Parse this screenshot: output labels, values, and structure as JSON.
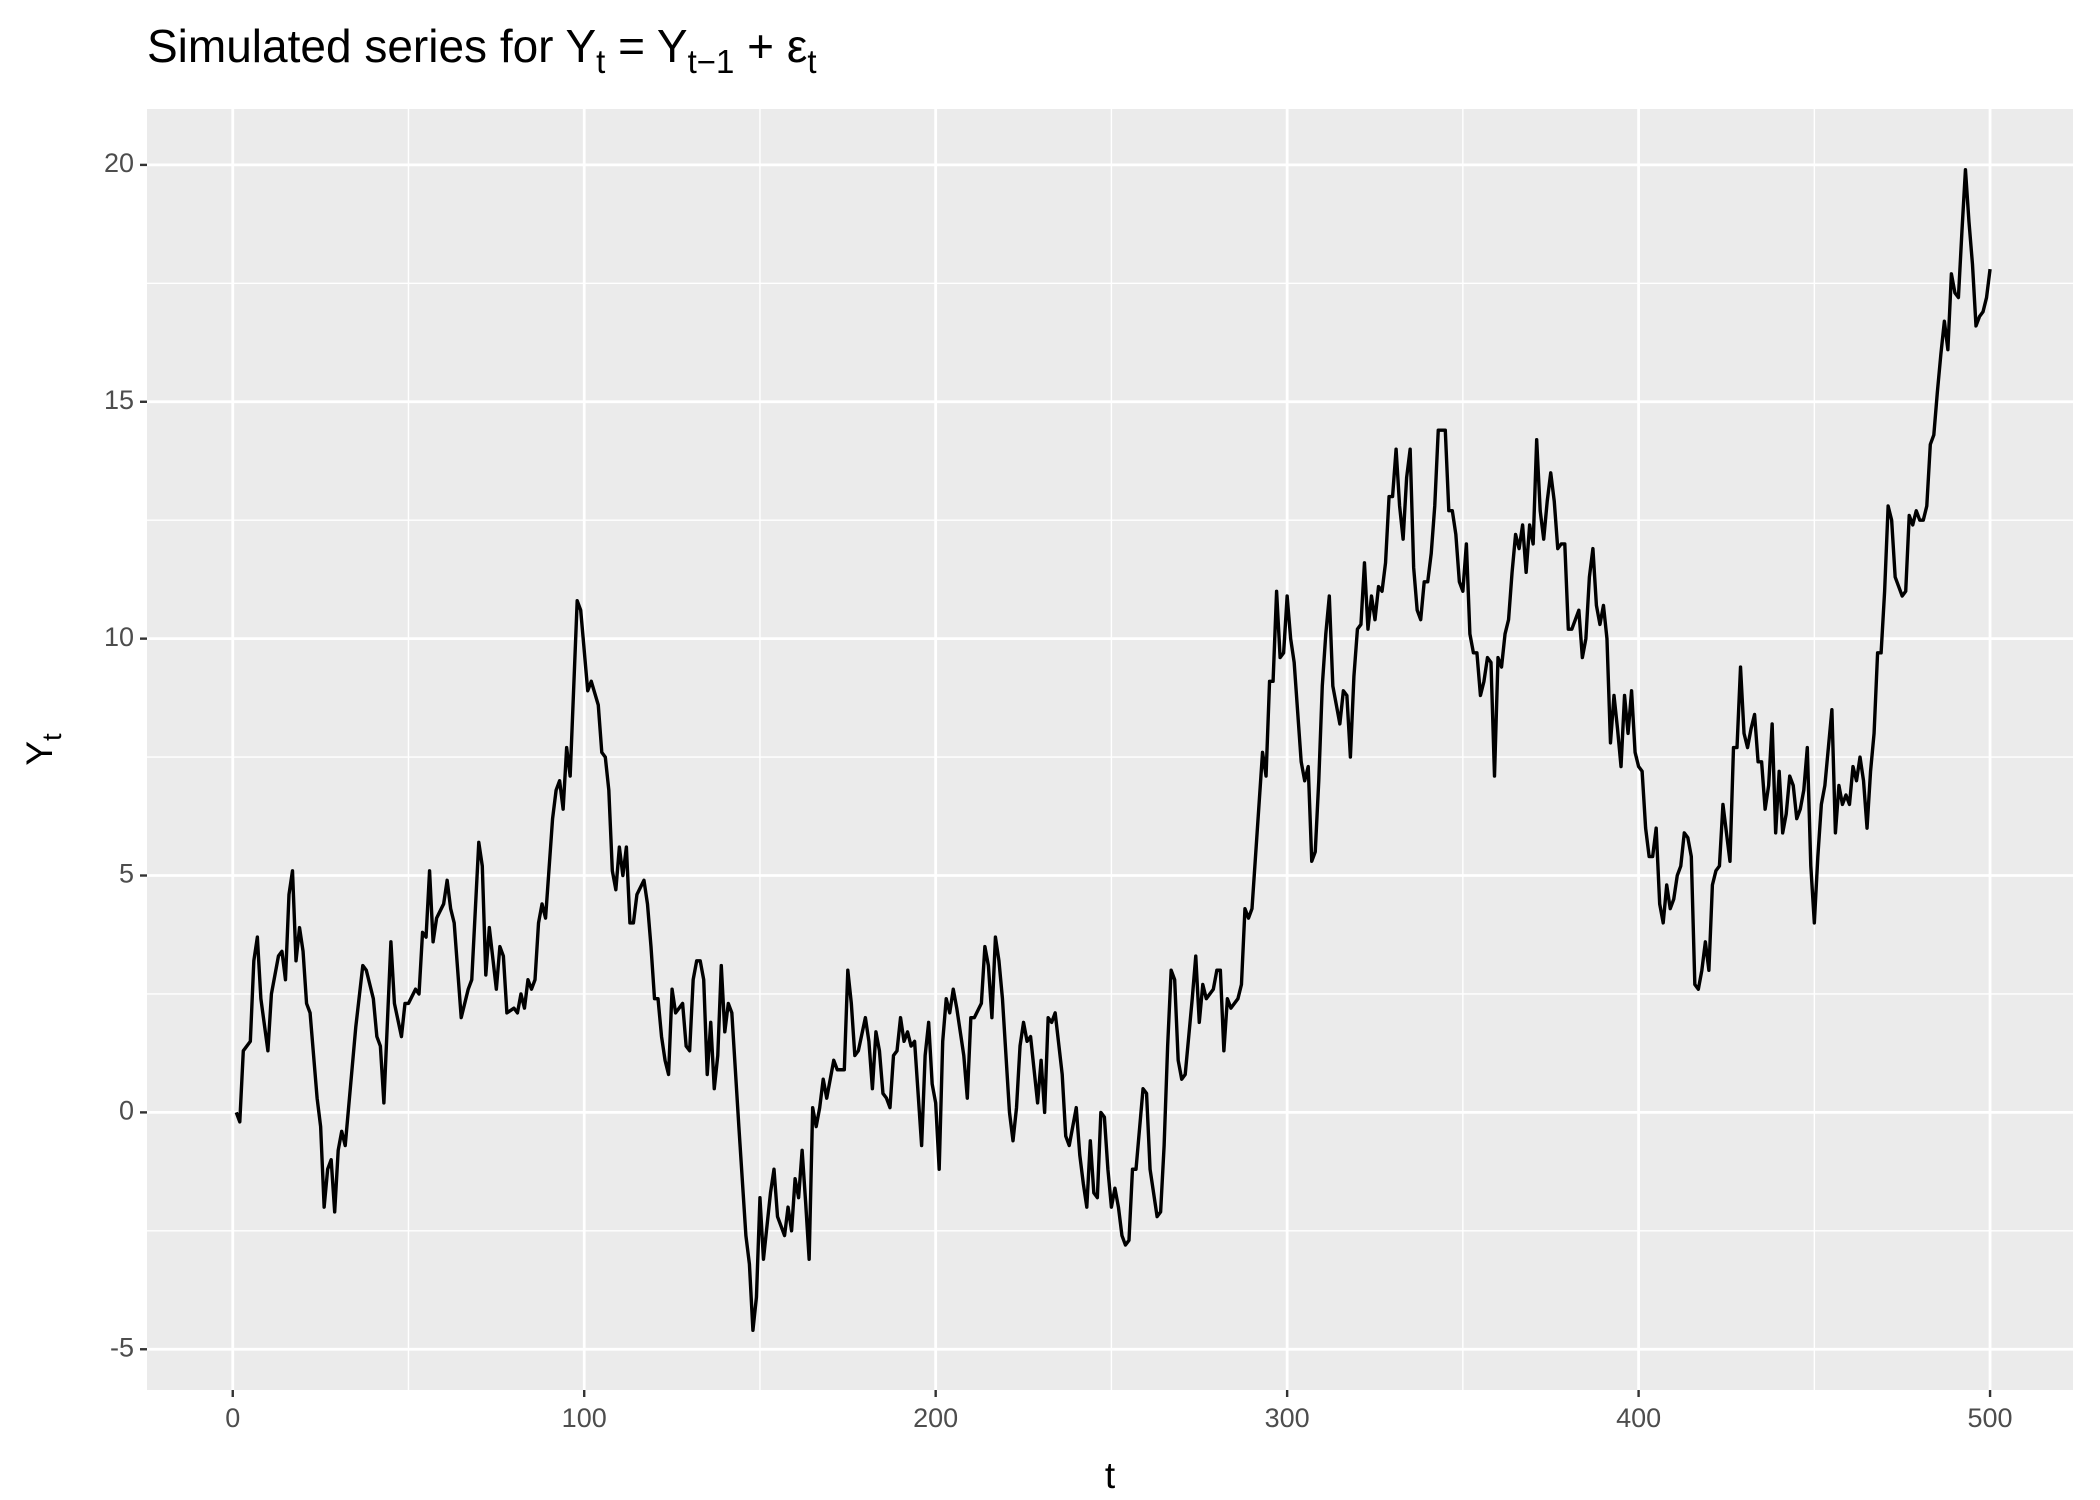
{
  "chart_data": {
    "type": "line",
    "title": [
      "Simulated series for  Y",
      "t",
      " = Y",
      "t−1",
      " + ε",
      "t"
    ],
    "x_label": "t",
    "y_label": [
      "Y",
      "t"
    ],
    "color": "#000000",
    "grid": true,
    "xlim": [
      -24.4,
      523.6
    ],
    "ylim": [
      -5.86,
      21.18
    ],
    "xticks": [
      0,
      100,
      200,
      300,
      400,
      500
    ],
    "yticks": [
      -5,
      0,
      5,
      10,
      15,
      20
    ],
    "x": [
      1,
      2,
      3,
      5,
      6,
      7,
      8,
      10,
      11,
      13,
      14,
      15,
      16,
      17,
      18,
      19,
      20,
      21,
      22,
      24,
      25,
      26,
      27,
      28,
      29,
      30,
      31,
      32,
      35,
      37,
      38,
      40,
      41,
      42,
      43,
      45,
      46,
      48,
      49,
      50,
      52,
      53,
      54,
      55,
      56,
      57,
      58,
      60,
      61,
      62,
      63,
      65,
      67,
      68,
      70,
      71,
      72,
      73,
      75,
      76,
      77,
      78,
      80,
      81,
      82,
      83,
      84,
      85,
      86,
      87,
      88,
      89,
      91,
      92,
      93,
      94,
      95,
      96,
      98,
      99,
      101,
      102,
      104,
      105,
      106,
      107,
      108,
      109,
      110,
      111,
      112,
      113,
      114,
      115,
      117,
      118,
      119,
      120,
      121,
      122,
      123,
      124,
      125,
      126,
      128,
      129,
      130,
      131,
      132,
      133,
      134,
      135,
      136,
      137,
      138,
      139,
      140,
      141,
      142,
      144,
      146,
      147,
      148,
      149,
      150,
      151,
      153,
      154,
      155,
      157,
      158,
      159,
      160,
      161,
      162,
      163,
      164,
      165,
      166,
      167,
      168,
      169,
      171,
      172,
      174,
      175,
      176,
      177,
      178,
      180,
      181,
      182,
      183,
      184,
      185,
      186,
      187,
      188,
      189,
      190,
      191,
      192,
      193,
      194,
      196,
      197,
      198,
      199,
      200,
      201,
      202,
      203,
      204,
      205,
      206,
      208,
      209,
      210,
      211,
      213,
      214,
      215,
      216,
      217,
      218,
      219,
      221,
      222,
      223,
      224,
      225,
      226,
      227,
      228,
      229,
      230,
      231,
      232,
      233,
      234,
      236,
      237,
      238,
      240,
      241,
      242,
      243,
      244,
      245,
      246,
      247,
      248,
      249,
      250,
      251,
      252,
      253,
      254,
      255,
      256,
      257,
      259,
      260,
      261,
      263,
      264,
      265,
      266,
      267,
      268,
      269,
      270,
      271,
      273,
      274,
      275,
      276,
      277,
      279,
      280,
      281,
      282,
      283,
      284,
      286,
      287,
      288,
      289,
      290,
      292,
      293,
      294,
      295,
      296,
      297,
      298,
      299,
      300,
      301,
      302,
      304,
      305,
      306,
      307,
      308,
      309,
      310,
      311,
      312,
      313,
      314,
      315,
      316,
      317,
      318,
      319,
      320,
      321,
      322,
      323,
      324,
      325,
      326,
      327,
      328,
      329,
      330,
      331,
      332,
      333,
      334,
      335,
      336,
      337,
      338,
      339,
      340,
      341,
      342,
      343,
      344,
      345,
      346,
      347,
      348,
      349,
      350,
      351,
      352,
      353,
      354,
      355,
      356,
      357,
      358,
      359,
      360,
      361,
      362,
      363,
      364,
      365,
      366,
      367,
      368,
      369,
      370,
      371,
      372,
      373,
      374,
      375,
      376,
      377,
      378,
      379,
      380,
      381,
      382,
      383,
      384,
      385,
      386,
      387,
      388,
      389,
      390,
      391,
      392,
      393,
      394,
      395,
      396,
      397,
      398,
      399,
      400,
      401,
      402,
      403,
      404,
      405,
      406,
      407,
      408,
      409,
      410,
      411,
      412,
      413,
      414,
      415,
      416,
      417,
      418,
      419,
      420,
      421,
      422,
      423,
      424,
      425,
      426,
      427,
      428,
      429,
      430,
      431,
      432,
      433,
      434,
      435,
      436,
      437,
      438,
      439,
      440,
      441,
      442,
      443,
      444,
      445,
      446,
      447,
      448,
      449,
      450,
      451,
      452,
      453,
      454,
      455,
      456,
      457,
      458,
      459,
      460,
      461,
      462,
      463,
      464,
      465,
      466,
      467,
      468,
      469,
      470,
      471,
      472,
      473,
      474,
      475,
      476,
      477,
      478,
      479,
      480,
      481,
      482,
      483,
      484,
      485,
      486,
      487,
      488,
      489,
      490,
      491,
      492,
      493,
      494,
      495,
      496,
      497,
      498,
      499,
      500
    ],
    "values": [
      0,
      -0.2,
      1.3,
      1.5,
      3.2,
      3.7,
      2.4,
      1.3,
      2.5,
      3.3,
      3.4,
      2.8,
      4.6,
      5.1,
      3.2,
      3.9,
      3.4,
      2.3,
      2.1,
      0.3,
      -0.3,
      -2.0,
      -1.2,
      -1.0,
      -2.1,
      -0.8,
      -0.4,
      -0.7,
      1.8,
      3.1,
      3.0,
      2.4,
      1.6,
      1.4,
      0.2,
      3.6,
      2.3,
      1.6,
      2.3,
      2.3,
      2.6,
      2.5,
      3.8,
      3.7,
      5.1,
      3.6,
      4.1,
      4.4,
      4.9,
      4.3,
      4.0,
      2.0,
      2.6,
      2.8,
      5.7,
      5.2,
      2.9,
      3.9,
      2.6,
      3.5,
      3.3,
      2.1,
      2.2,
      2.1,
      2.5,
      2.2,
      2.8,
      2.6,
      2.8,
      4.0,
      4.4,
      4.1,
      6.2,
      6.8,
      7.0,
      6.4,
      7.7,
      7.1,
      10.8,
      10.6,
      8.9,
      9.1,
      8.6,
      7.6,
      7.5,
      6.8,
      5.1,
      4.7,
      5.6,
      5.0,
      5.6,
      4.0,
      4.0,
      4.6,
      4.9,
      4.4,
      3.5,
      2.4,
      2.4,
      1.6,
      1.1,
      0.8,
      2.6,
      2.1,
      2.3,
      1.4,
      1.3,
      2.8,
      3.2,
      3.2,
      2.8,
      0.8,
      1.9,
      0.5,
      1.2,
      3.1,
      1.7,
      2.3,
      2.1,
      -0.3,
      -2.6,
      -3.2,
      -4.6,
      -3.9,
      -1.8,
      -3.1,
      -1.7,
      -1.2,
      -2.2,
      -2.6,
      -2.0,
      -2.5,
      -1.4,
      -1.8,
      -0.8,
      -1.9,
      -3.1,
      0.1,
      -0.3,
      0.1,
      0.7,
      0.3,
      1.1,
      0.9,
      0.9,
      3.0,
      2.3,
      1.2,
      1.3,
      2.0,
      1.5,
      0.5,
      1.7,
      1.3,
      0.4,
      0.3,
      0.1,
      1.2,
      1.3,
      2.0,
      1.5,
      1.7,
      1.4,
      1.5,
      -0.7,
      1.2,
      1.9,
      0.6,
      0.2,
      -1.2,
      1.5,
      2.4,
      2.1,
      2.6,
      2.2,
      1.2,
      0.3,
      2.0,
      2.0,
      2.3,
      3.5,
      3.1,
      2.0,
      3.7,
      3.2,
      2.4,
      0.0,
      -0.6,
      0.1,
      1.4,
      1.9,
      1.5,
      1.6,
      0.9,
      0.2,
      1.1,
      0.0,
      2.0,
      1.9,
      2.1,
      0.8,
      -0.5,
      -0.7,
      0.1,
      -0.9,
      -1.5,
      -2.0,
      -0.6,
      -1.7,
      -1.8,
      0.0,
      -0.1,
      -1.2,
      -2.0,
      -1.6,
      -2.0,
      -2.6,
      -2.8,
      -2.7,
      -1.2,
      -1.2,
      0.5,
      0.4,
      -1.2,
      -2.2,
      -2.1,
      -0.7,
      1.4,
      3.0,
      2.8,
      1.1,
      0.7,
      0.8,
      2.4,
      3.3,
      1.9,
      2.7,
      2.4,
      2.6,
      3.0,
      3.0,
      1.3,
      2.4,
      2.2,
      2.4,
      2.7,
      4.3,
      4.1,
      4.3,
      6.5,
      7.6,
      7.1,
      9.1,
      9.1,
      11.0,
      9.6,
      9.7,
      10.9,
      10.0,
      9.5,
      7.4,
      7.0,
      7.3,
      5.3,
      5.5,
      7.0,
      9.0,
      10.1,
      10.9,
      9.0,
      8.6,
      8.2,
      8.9,
      8.8,
      7.5,
      9.2,
      10.2,
      10.3,
      11.6,
      10.2,
      10.9,
      10.4,
      11.1,
      11.0,
      11.6,
      13.0,
      13.0,
      14.0,
      12.8,
      12.1,
      13.4,
      14.0,
      11.5,
      10.6,
      10.4,
      11.2,
      11.2,
      11.8,
      12.8,
      14.4,
      14.4,
      14.4,
      12.7,
      12.7,
      12.2,
      11.2,
      11.0,
      12.0,
      10.1,
      9.7,
      9.7,
      8.8,
      9.1,
      9.6,
      9.5,
      7.1,
      9.6,
      9.4,
      10.1,
      10.4,
      11.4,
      12.2,
      11.9,
      12.4,
      11.4,
      12.4,
      12.0,
      14.2,
      12.7,
      12.1,
      12.9,
      13.5,
      12.9,
      11.9,
      12.0,
      12.0,
      10.2,
      10.2,
      10.4,
      10.6,
      9.6,
      10.0,
      11.3,
      11.9,
      10.7,
      10.3,
      10.7,
      10.0,
      7.8,
      8.8,
      8.1,
      7.3,
      8.8,
      8.0,
      8.9,
      7.6,
      7.3,
      7.2,
      6.0,
      5.4,
      5.4,
      6.0,
      4.4,
      4.0,
      4.8,
      4.3,
      4.5,
      5.0,
      5.2,
      5.9,
      5.8,
      5.4,
      2.7,
      2.6,
      3.0,
      3.6,
      3.0,
      4.8,
      5.1,
      5.2,
      6.5,
      5.9,
      5.3,
      7.7,
      7.7,
      9.4,
      8.0,
      7.7,
      8.1,
      8.4,
      7.4,
      7.4,
      6.4,
      6.9,
      8.2,
      5.9,
      7.2,
      5.9,
      6.3,
      7.1,
      6.9,
      6.2,
      6.4,
      6.8,
      7.7,
      5.2,
      4.0,
      5.4,
      6.5,
      6.9,
      7.7,
      8.5,
      5.9,
      6.9,
      6.5,
      6.7,
      6.5,
      7.3,
      7.0,
      7.5,
      7.0,
      6.0,
      7.2,
      8.0,
      9.7,
      9.7,
      11.0,
      12.8,
      12.5,
      11.3,
      11.1,
      10.9,
      11.0,
      12.6,
      12.4,
      12.7,
      12.5,
      12.5,
      12.8,
      14.1,
      14.3,
      15.2,
      16.0,
      16.7,
      16.1,
      17.7,
      17.3,
      17.2,
      18.6,
      19.9,
      18.8,
      17.9,
      16.6,
      16.8,
      16.9,
      17.2,
      17.8
    ]
  }
}
